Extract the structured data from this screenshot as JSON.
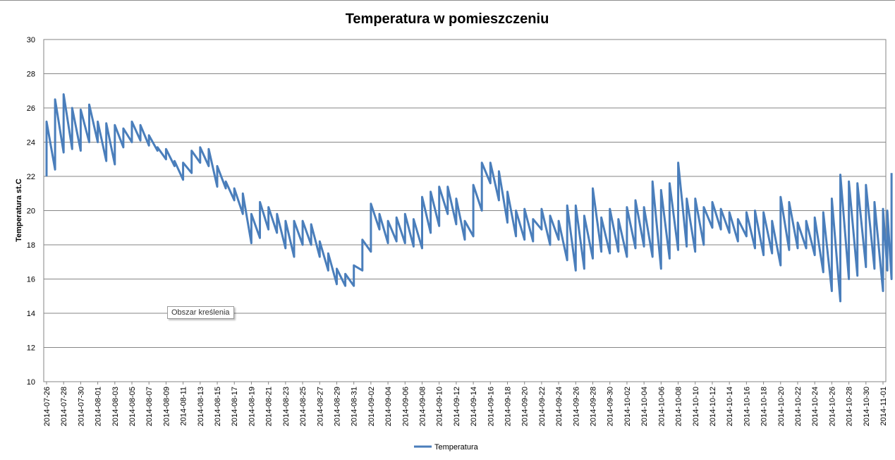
{
  "chart_data": {
    "type": "line",
    "title": "Temperatura w pomieszczeniu",
    "xlabel": "",
    "ylabel": "Temperatura st.C",
    "ylim": [
      10,
      30
    ],
    "yticks": [
      10,
      12,
      14,
      16,
      18,
      20,
      22,
      24,
      26,
      28,
      30
    ],
    "grid": true,
    "legend_position": "bottom",
    "tooltip": "Obszar kreślenia",
    "x_start": "2014-07-26",
    "x_end": "2014-11-01",
    "xtick_labels": [
      "2014-07-26",
      "2014-07-28",
      "2014-07-30",
      "2014-08-01",
      "2014-08-03",
      "2014-08-05",
      "2014-08-07",
      "2014-08-09",
      "2014-08-11",
      "2014-08-13",
      "2014-08-15",
      "2014-08-17",
      "2014-08-19",
      "2014-08-21",
      "2014-08-23",
      "2014-08-25",
      "2014-08-27",
      "2014-08-29",
      "2014-08-31",
      "2014-09-02",
      "2014-09-04",
      "2014-09-06",
      "2014-09-08",
      "2014-09-10",
      "2014-09-12",
      "2014-09-14",
      "2014-09-16",
      "2014-09-18",
      "2014-09-20",
      "2014-09-22",
      "2014-09-24",
      "2014-09-26",
      "2014-09-28",
      "2014-09-30",
      "2014-10-02",
      "2014-10-04",
      "2014-10-06",
      "2014-10-08",
      "2014-10-10",
      "2014-10-12",
      "2014-10-14",
      "2014-10-16",
      "2014-10-18",
      "2014-10-20",
      "2014-10-22",
      "2014-10-24",
      "2014-10-26",
      "2014-10-28",
      "2014-10-30",
      "2014-11-01"
    ],
    "series": [
      {
        "name": "Temperatura",
        "color": "#4a7ebb",
        "points": [
          [
            "2014-07-26 00:00",
            22.0
          ],
          [
            "2014-07-26 00:01",
            25.2
          ],
          [
            "2014-07-26 23:59",
            22.4
          ],
          [
            "2014-07-27 00:00",
            26.5
          ],
          [
            "2014-07-27 23:59",
            23.4
          ],
          [
            "2014-07-28 00:00",
            26.8
          ],
          [
            "2014-07-28 23:59",
            23.6
          ],
          [
            "2014-07-29 00:00",
            26.0
          ],
          [
            "2014-07-29 23:59",
            23.5
          ],
          [
            "2014-07-30 00:00",
            25.9
          ],
          [
            "2014-07-30 23:59",
            24.0
          ],
          [
            "2014-07-31 00:00",
            26.2
          ],
          [
            "2014-07-31 23:59",
            24.0
          ],
          [
            "2014-08-01 00:00",
            25.2
          ],
          [
            "2014-08-01 23:59",
            22.9
          ],
          [
            "2014-08-02 00:00",
            25.1
          ],
          [
            "2014-08-02 23:59",
            22.7
          ],
          [
            "2014-08-03 00:00",
            25.0
          ],
          [
            "2014-08-03 23:59",
            23.7
          ],
          [
            "2014-08-04 00:00",
            24.8
          ],
          [
            "2014-08-04 23:59",
            24.0
          ],
          [
            "2014-08-05 00:00",
            25.2
          ],
          [
            "2014-08-05 23:59",
            24.1
          ],
          [
            "2014-08-06 00:00",
            25.0
          ],
          [
            "2014-08-06 23:59",
            23.8
          ],
          [
            "2014-08-07 00:00",
            24.4
          ],
          [
            "2014-08-07 23:59",
            23.5
          ],
          [
            "2014-08-08 00:00",
            23.7
          ],
          [
            "2014-08-08 23:59",
            23.0
          ],
          [
            "2014-08-09 00:00",
            23.6
          ],
          [
            "2014-08-09 23:59",
            22.6
          ],
          [
            "2014-08-10 00:00",
            22.9
          ],
          [
            "2014-08-10 23:59",
            21.8
          ],
          [
            "2014-08-11 00:00",
            22.8
          ],
          [
            "2014-08-11 23:59",
            22.2
          ],
          [
            "2014-08-12 00:00",
            23.5
          ],
          [
            "2014-08-12 23:59",
            22.8
          ],
          [
            "2014-08-13 00:00",
            23.7
          ],
          [
            "2014-08-13 23:59",
            22.6
          ],
          [
            "2014-08-14 00:00",
            23.6
          ],
          [
            "2014-08-14 23:59",
            21.4
          ],
          [
            "2014-08-15 00:00",
            22.6
          ],
          [
            "2014-08-15 23:59",
            21.3
          ],
          [
            "2014-08-16 00:00",
            21.7
          ],
          [
            "2014-08-16 23:59",
            20.6
          ],
          [
            "2014-08-17 00:00",
            21.3
          ],
          [
            "2014-08-17 23:59",
            19.8
          ],
          [
            "2014-08-18 00:00",
            21.0
          ],
          [
            "2014-08-18 23:59",
            18.1
          ],
          [
            "2014-08-19 00:00",
            19.8
          ],
          [
            "2014-08-19 23:59",
            18.4
          ],
          [
            "2014-08-20 00:00",
            20.5
          ],
          [
            "2014-08-20 23:59",
            18.9
          ],
          [
            "2014-08-21 00:00",
            20.2
          ],
          [
            "2014-08-21 23:59",
            18.7
          ],
          [
            "2014-08-22 00:00",
            19.8
          ],
          [
            "2014-08-22 23:59",
            17.8
          ],
          [
            "2014-08-23 00:00",
            19.4
          ],
          [
            "2014-08-23 23:59",
            17.3
          ],
          [
            "2014-08-24 00:00",
            19.4
          ],
          [
            "2014-08-24 23:59",
            18.0
          ],
          [
            "2014-08-25 00:00",
            19.4
          ],
          [
            "2014-08-25 23:59",
            18.0
          ],
          [
            "2014-08-26 00:00",
            19.2
          ],
          [
            "2014-08-26 23:59",
            17.3
          ],
          [
            "2014-08-27 00:00",
            18.2
          ],
          [
            "2014-08-27 23:59",
            16.5
          ],
          [
            "2014-08-28 00:00",
            17.5
          ],
          [
            "2014-08-28 23:59",
            15.7
          ],
          [
            "2014-08-29 00:00",
            16.6
          ],
          [
            "2014-08-29 23:59",
            15.6
          ],
          [
            "2014-08-30 00:00",
            16.3
          ],
          [
            "2014-08-30 23:59",
            15.6
          ],
          [
            "2014-08-31 00:00",
            16.8
          ],
          [
            "2014-08-31 23:59",
            16.5
          ],
          [
            "2014-09-01 00:00",
            18.3
          ],
          [
            "2014-09-01 23:59",
            17.6
          ],
          [
            "2014-09-02 00:00",
            20.4
          ],
          [
            "2014-09-02 23:59",
            18.9
          ],
          [
            "2014-09-03 00:00",
            19.8
          ],
          [
            "2014-09-03 23:59",
            18.1
          ],
          [
            "2014-09-04 00:00",
            19.4
          ],
          [
            "2014-09-04 23:59",
            18.2
          ],
          [
            "2014-09-05 00:00",
            19.6
          ],
          [
            "2014-09-05 23:59",
            18.1
          ],
          [
            "2014-09-06 00:00",
            19.8
          ],
          [
            "2014-09-06 23:59",
            17.9
          ],
          [
            "2014-09-07 00:00",
            19.5
          ],
          [
            "2014-09-07 23:59",
            17.8
          ],
          [
            "2014-09-08 00:00",
            20.8
          ],
          [
            "2014-09-08 23:59",
            18.7
          ],
          [
            "2014-09-09 00:00",
            21.1
          ],
          [
            "2014-09-09 23:59",
            19.1
          ],
          [
            "2014-09-10 00:00",
            21.4
          ],
          [
            "2014-09-10 23:59",
            19.8
          ],
          [
            "2014-09-11 00:00",
            21.4
          ],
          [
            "2014-09-11 23:59",
            19.2
          ],
          [
            "2014-09-12 00:00",
            20.7
          ],
          [
            "2014-09-12 23:59",
            18.3
          ],
          [
            "2014-09-13 00:00",
            19.4
          ],
          [
            "2014-09-13 23:59",
            18.5
          ],
          [
            "2014-09-14 00:00",
            21.5
          ],
          [
            "2014-09-14 23:59",
            20.0
          ],
          [
            "2014-09-15 00:00",
            22.8
          ],
          [
            "2014-09-15 23:59",
            21.6
          ],
          [
            "2014-09-16 00:00",
            22.8
          ],
          [
            "2014-09-16 23:59",
            20.6
          ],
          [
            "2014-09-17 00:00",
            22.3
          ],
          [
            "2014-09-17 23:59",
            19.3
          ],
          [
            "2014-09-18 00:00",
            21.1
          ],
          [
            "2014-09-18 23:59",
            18.5
          ],
          [
            "2014-09-19 00:00",
            20.0
          ],
          [
            "2014-09-19 23:59",
            18.3
          ],
          [
            "2014-09-20 00:00",
            20.1
          ],
          [
            "2014-09-20 23:59",
            18.2
          ],
          [
            "2014-09-21 00:00",
            19.5
          ],
          [
            "2014-09-21 23:59",
            18.9
          ],
          [
            "2014-09-22 00:00",
            20.1
          ],
          [
            "2014-09-22 23:59",
            18.0
          ],
          [
            "2014-09-23 00:00",
            19.7
          ],
          [
            "2014-09-23 23:59",
            18.3
          ],
          [
            "2014-09-24 00:00",
            19.4
          ],
          [
            "2014-09-24 23:59",
            17.1
          ],
          [
            "2014-09-25 00:00",
            20.3
          ],
          [
            "2014-09-25 23:59",
            16.5
          ],
          [
            "2014-09-26 00:00",
            20.3
          ],
          [
            "2014-09-26 23:59",
            16.6
          ],
          [
            "2014-09-27 00:00",
            19.7
          ],
          [
            "2014-09-27 23:59",
            17.2
          ],
          [
            "2014-09-28 00:00",
            21.3
          ],
          [
            "2014-09-28 23:59",
            17.6
          ],
          [
            "2014-09-29 00:00",
            19.6
          ],
          [
            "2014-09-29 23:59",
            17.5
          ],
          [
            "2014-09-30 00:00",
            20.1
          ],
          [
            "2014-09-30 23:59",
            17.6
          ],
          [
            "2014-10-01 00:00",
            19.5
          ],
          [
            "2014-10-01 23:59",
            17.3
          ],
          [
            "2014-10-02 00:00",
            20.2
          ],
          [
            "2014-10-02 23:59",
            17.8
          ],
          [
            "2014-10-03 00:00",
            20.6
          ],
          [
            "2014-10-03 23:59",
            17.9
          ],
          [
            "2014-10-04 00:00",
            20.2
          ],
          [
            "2014-10-04 23:59",
            17.3
          ],
          [
            "2014-10-05 00:00",
            21.7
          ],
          [
            "2014-10-05 23:59",
            16.6
          ],
          [
            "2014-10-06 00:00",
            21.2
          ],
          [
            "2014-10-06 23:59",
            17.2
          ],
          [
            "2014-10-07 00:00",
            21.6
          ],
          [
            "2014-10-07 23:59",
            17.7
          ],
          [
            "2014-10-08 00:00",
            22.8
          ],
          [
            "2014-10-08 23:59",
            17.9
          ],
          [
            "2014-10-09 00:00",
            20.7
          ],
          [
            "2014-10-09 23:59",
            17.6
          ],
          [
            "2014-10-10 00:00",
            20.7
          ],
          [
            "2014-10-10 23:59",
            18.0
          ],
          [
            "2014-10-11 00:00",
            20.2
          ],
          [
            "2014-10-11 23:59",
            19.0
          ],
          [
            "2014-10-12 00:00",
            20.5
          ],
          [
            "2014-10-12 23:59",
            18.9
          ],
          [
            "2014-10-13 00:00",
            20.1
          ],
          [
            "2014-10-13 23:59",
            18.7
          ],
          [
            "2014-10-14 00:00",
            19.9
          ],
          [
            "2014-10-14 23:59",
            18.2
          ],
          [
            "2014-10-15 00:00",
            19.5
          ],
          [
            "2014-10-15 23:59",
            18.5
          ],
          [
            "2014-10-16 00:00",
            19.9
          ],
          [
            "2014-10-16 23:59",
            17.8
          ],
          [
            "2014-10-17 00:00",
            20.0
          ],
          [
            "2014-10-17 23:59",
            17.4
          ],
          [
            "2014-10-18 00:00",
            19.9
          ],
          [
            "2014-10-18 23:59",
            17.5
          ],
          [
            "2014-10-19 00:00",
            19.4
          ],
          [
            "2014-10-19 23:59",
            16.8
          ],
          [
            "2014-10-20 00:00",
            20.8
          ],
          [
            "2014-10-20 23:59",
            17.7
          ],
          [
            "2014-10-21 00:00",
            20.5
          ],
          [
            "2014-10-21 23:59",
            17.8
          ],
          [
            "2014-10-22 00:00",
            19.3
          ],
          [
            "2014-10-22 23:59",
            17.8
          ],
          [
            "2014-10-23 00:00",
            19.4
          ],
          [
            "2014-10-23 23:59",
            17.4
          ],
          [
            "2014-10-24 00:00",
            19.6
          ],
          [
            "2014-10-24 23:59",
            16.4
          ],
          [
            "2014-10-25 00:00",
            19.9
          ],
          [
            "2014-10-25 23:59",
            15.3
          ],
          [
            "2014-10-26 00:00",
            20.7
          ],
          [
            "2014-10-26 23:59",
            14.7
          ],
          [
            "2014-10-27 00:00",
            22.1
          ],
          [
            "2014-10-27 23:59",
            16.0
          ],
          [
            "2014-10-28 00:00",
            21.7
          ],
          [
            "2014-10-28 23:59",
            16.2
          ],
          [
            "2014-10-29 00:00",
            21.6
          ],
          [
            "2014-10-29 23:59",
            16.7
          ],
          [
            "2014-10-30 00:00",
            21.5
          ],
          [
            "2014-10-30 23:59",
            16.6
          ],
          [
            "2014-10-31 00:00",
            20.5
          ],
          [
            "2014-10-31 23:59",
            15.3
          ],
          [
            "2014-11-01 00:00",
            20.1
          ],
          [
            "2014-11-01 12:00",
            16.5
          ],
          [
            "2014-11-01 12:01",
            20.0
          ],
          [
            "2014-11-01 23:58",
            16.0
          ],
          [
            "2014-11-01 23:59",
            22.2
          ]
        ]
      }
    ]
  }
}
